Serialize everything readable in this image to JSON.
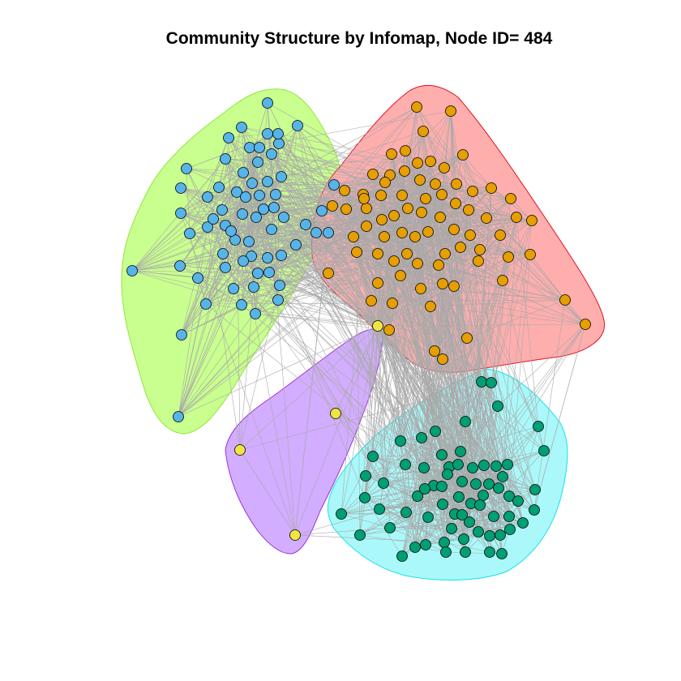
{
  "title": "Community Structure by Infomap, Node ID= 484",
  "colors": {
    "edge": "#a9a9a9",
    "node_stroke": "#000000",
    "communities": [
      {
        "name": "community-blue",
        "node": "#56b4e9",
        "hull_fill": "#c9ff8f",
        "hull_stroke": "#8fe63c"
      },
      {
        "name": "community-orange",
        "node": "#e69f00",
        "hull_fill": "#ffaeae",
        "hull_stroke": "#e01020"
      },
      {
        "name": "community-green",
        "node": "#009e73",
        "hull_fill": "#aaf8fa",
        "hull_stroke": "#18e0e8"
      },
      {
        "name": "community-yellow",
        "node": "#f0e442",
        "hull_fill": "#d3adff",
        "hull_stroke": "#9a32d8"
      }
    ]
  }
}
